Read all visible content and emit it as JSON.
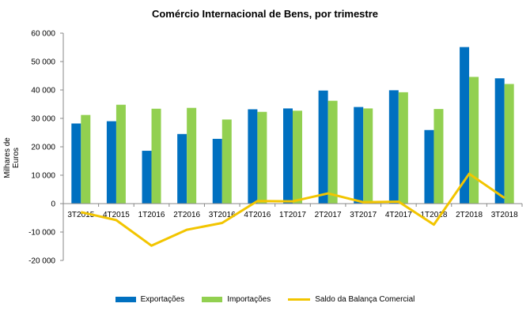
{
  "chart_data": {
    "type": "bar",
    "title": "Comércio Internacional de Bens, por trimestre",
    "ylabel": "Milhares de Euros",
    "xlabel": "",
    "categories": [
      "3T2015",
      "4T2015",
      "1T2016",
      "2T2016",
      "3T2016",
      "4T2016",
      "1T2017",
      "2T2017",
      "3T2017",
      "4T2017",
      "1T2018",
      "2T2018",
      "3T2018"
    ],
    "ylim": [
      -20000,
      60000
    ],
    "yticks": [
      60000,
      50000,
      40000,
      30000,
      20000,
      10000,
      0,
      -10000,
      -20000
    ],
    "ytick_labels": [
      "60 000",
      "50 000",
      "40 000",
      "30 000",
      "20 000",
      "10 000",
      "0",
      "-10 000",
      "-20 000"
    ],
    "grid": false,
    "legend_position": "bottom",
    "series": [
      {
        "name": "Exportações",
        "type": "bar",
        "color": "#0070c0",
        "values": [
          28200,
          29000,
          18600,
          24500,
          22800,
          33200,
          33500,
          39800,
          34000,
          39900,
          25900,
          55100,
          44100
        ]
      },
      {
        "name": "Importações",
        "type": "bar",
        "color": "#92d050",
        "values": [
          31200,
          34800,
          33400,
          33700,
          29600,
          32300,
          32700,
          36200,
          33500,
          39200,
          33300,
          44600,
          42100
        ]
      },
      {
        "name": "Saldo da Balança Comercial",
        "type": "line",
        "color": "#f2c500",
        "values": [
          -3000,
          -5800,
          -14800,
          -9200,
          -6800,
          900,
          800,
          3600,
          500,
          700,
          -7400,
          10500,
          2000
        ]
      }
    ]
  }
}
